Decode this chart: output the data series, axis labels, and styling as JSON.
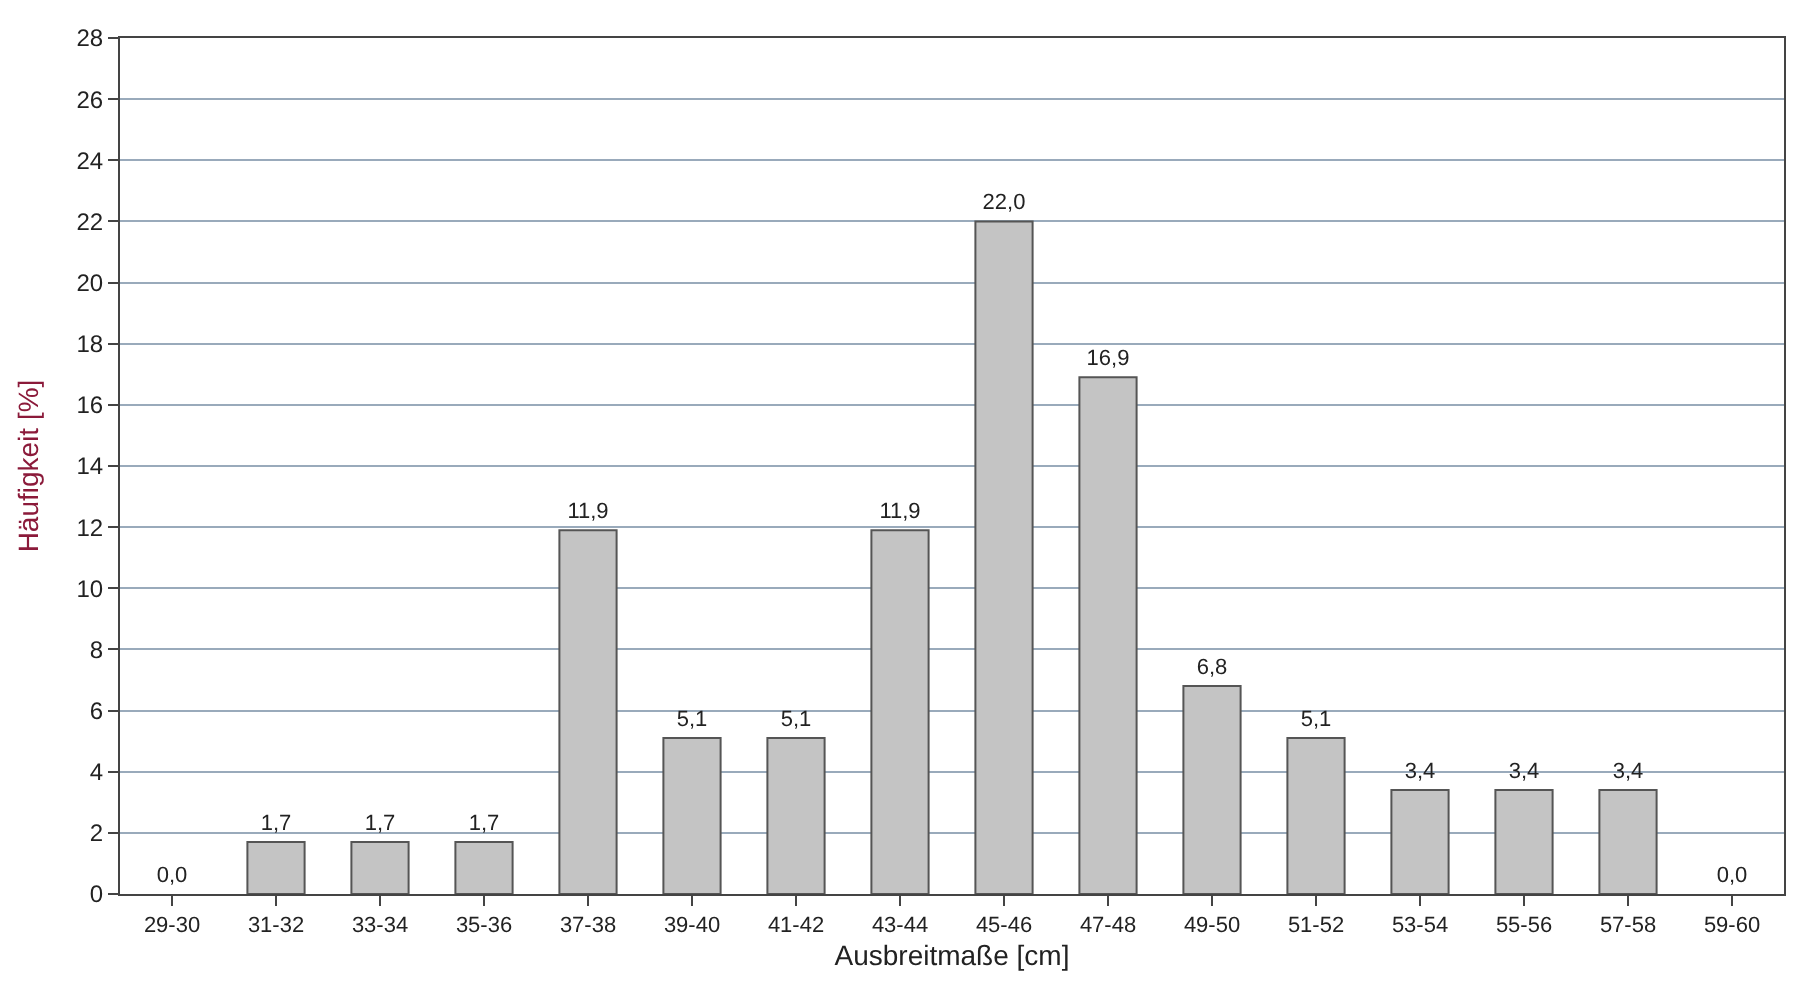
{
  "chart_data": {
    "type": "bar",
    "xlabel": "Ausbreitmaße [cm]",
    "ylabel": "Häufigkeit [%]",
    "categories": [
      "29-30",
      "31-32",
      "33-34",
      "35-36",
      "37-38",
      "39-40",
      "41-42",
      "43-44",
      "45-46",
      "47-48",
      "49-50",
      "51-52",
      "53-54",
      "55-56",
      "57-58",
      "59-60"
    ],
    "values": [
      0.0,
      1.7,
      1.7,
      1.7,
      11.9,
      5.1,
      5.1,
      11.9,
      22.0,
      16.9,
      6.8,
      5.1,
      3.4,
      3.4,
      3.4,
      0.0
    ],
    "value_labels": [
      "0,0",
      "1,7",
      "1,7",
      "1,7",
      "11,9",
      "5,1",
      "5,1",
      "11,9",
      "22,0",
      "16,9",
      "6,8",
      "5,1",
      "3,4",
      "3,4",
      "3,4",
      "0,0"
    ],
    "color": "#c4c4c4",
    "ylim": [
      0,
      28
    ],
    "yticks": [
      0,
      2,
      4,
      6,
      8,
      10,
      12,
      14,
      16,
      18,
      20,
      22,
      24,
      26,
      28
    ],
    "grid": "y",
    "legend": false
  }
}
